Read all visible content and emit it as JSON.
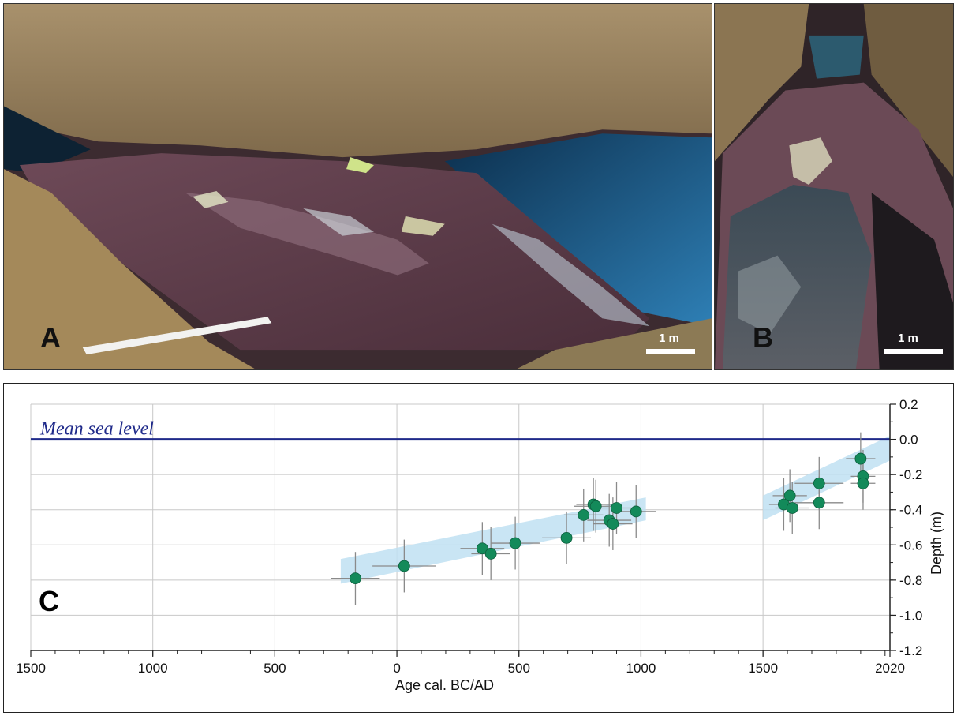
{
  "panels": {
    "a_label": "A",
    "b_label": "B",
    "c_label": "C"
  },
  "photos": {
    "scale_label_a": "1 m",
    "scale_label_b": "1 m"
  },
  "chart_data": {
    "type": "scatter",
    "title": "",
    "xlabel": "Age cal. BC/AD",
    "ylabel": "Depth (m)",
    "xlim": [
      -1500,
      2020
    ],
    "ylim": [
      -1.2,
      0.2
    ],
    "x_ticks": [
      {
        "value": -1500,
        "label": "1500"
      },
      {
        "value": -1000,
        "label": "1000"
      },
      {
        "value": -500,
        "label": "500"
      },
      {
        "value": 0,
        "label": "0"
      },
      {
        "value": 500,
        "label": "500"
      },
      {
        "value": 1000,
        "label": "1000"
      },
      {
        "value": 1500,
        "label": "1500"
      },
      {
        "value": 2020,
        "label": "2020"
      }
    ],
    "y_ticks": [
      {
        "value": 0.2,
        "label": "0.2"
      },
      {
        "value": 0.0,
        "label": "0.0"
      },
      {
        "value": -0.2,
        "label": "-0.2"
      },
      {
        "value": -0.4,
        "label": "-0.4"
      },
      {
        "value": -0.6,
        "label": "-0.6"
      },
      {
        "value": -0.8,
        "label": "-0.8"
      },
      {
        "value": -1.0,
        "label": "-1.0"
      },
      {
        "value": -1.2,
        "label": "-1.2"
      }
    ],
    "grid": true,
    "reference_line": {
      "label": "Mean sea level",
      "y": 0.0,
      "color": "#1f2a8a"
    },
    "point_color": "#138a5a",
    "band_color": "#bfe0f2",
    "trend_bands": [
      {
        "x1": -230,
        "y1_low": -0.82,
        "y1_high": -0.68,
        "x2": 1020,
        "y2_low": -0.46,
        "y2_high": -0.33
      },
      {
        "x1": 1500,
        "y1_low": -0.46,
        "y1_high": -0.32,
        "x2": 2020,
        "y2_low": -0.12,
        "y2_high": 0.02
      }
    ],
    "points": [
      {
        "x": -170,
        "y": -0.79,
        "xerr": 100,
        "yerr": 0.15
      },
      {
        "x": 30,
        "y": -0.72,
        "xerr": 130,
        "yerr": 0.15
      },
      {
        "x": 350,
        "y": -0.62,
        "xerr": 90,
        "yerr": 0.15
      },
      {
        "x": 385,
        "y": -0.65,
        "xerr": 80,
        "yerr": 0.15
      },
      {
        "x": 485,
        "y": -0.59,
        "xerr": 100,
        "yerr": 0.15
      },
      {
        "x": 695,
        "y": -0.56,
        "xerr": 100,
        "yerr": 0.15
      },
      {
        "x": 765,
        "y": -0.43,
        "xerr": 80,
        "yerr": 0.15
      },
      {
        "x": 805,
        "y": -0.37,
        "xerr": 70,
        "yerr": 0.15
      },
      {
        "x": 815,
        "y": -0.38,
        "xerr": 90,
        "yerr": 0.15
      },
      {
        "x": 870,
        "y": -0.46,
        "xerr": 90,
        "yerr": 0.15
      },
      {
        "x": 885,
        "y": -0.48,
        "xerr": 80,
        "yerr": 0.15
      },
      {
        "x": 900,
        "y": -0.39,
        "xerr": 80,
        "yerr": 0.15
      },
      {
        "x": 980,
        "y": -0.41,
        "xerr": 80,
        "yerr": 0.15
      },
      {
        "x": 1585,
        "y": -0.37,
        "xerr": 60,
        "yerr": 0.15
      },
      {
        "x": 1610,
        "y": -0.32,
        "xerr": 70,
        "yerr": 0.15
      },
      {
        "x": 1620,
        "y": -0.39,
        "xerr": 70,
        "yerr": 0.15
      },
      {
        "x": 1730,
        "y": -0.36,
        "xerr": 100,
        "yerr": 0.15
      },
      {
        "x": 1730,
        "y": -0.25,
        "xerr": 100,
        "yerr": 0.15
      },
      {
        "x": 1900,
        "y": -0.11,
        "xerr": 60,
        "yerr": 0.15
      },
      {
        "x": 1910,
        "y": -0.21,
        "xerr": 50,
        "yerr": 0.15
      },
      {
        "x": 1910,
        "y": -0.25,
        "xerr": 50,
        "yerr": 0.15
      }
    ]
  }
}
